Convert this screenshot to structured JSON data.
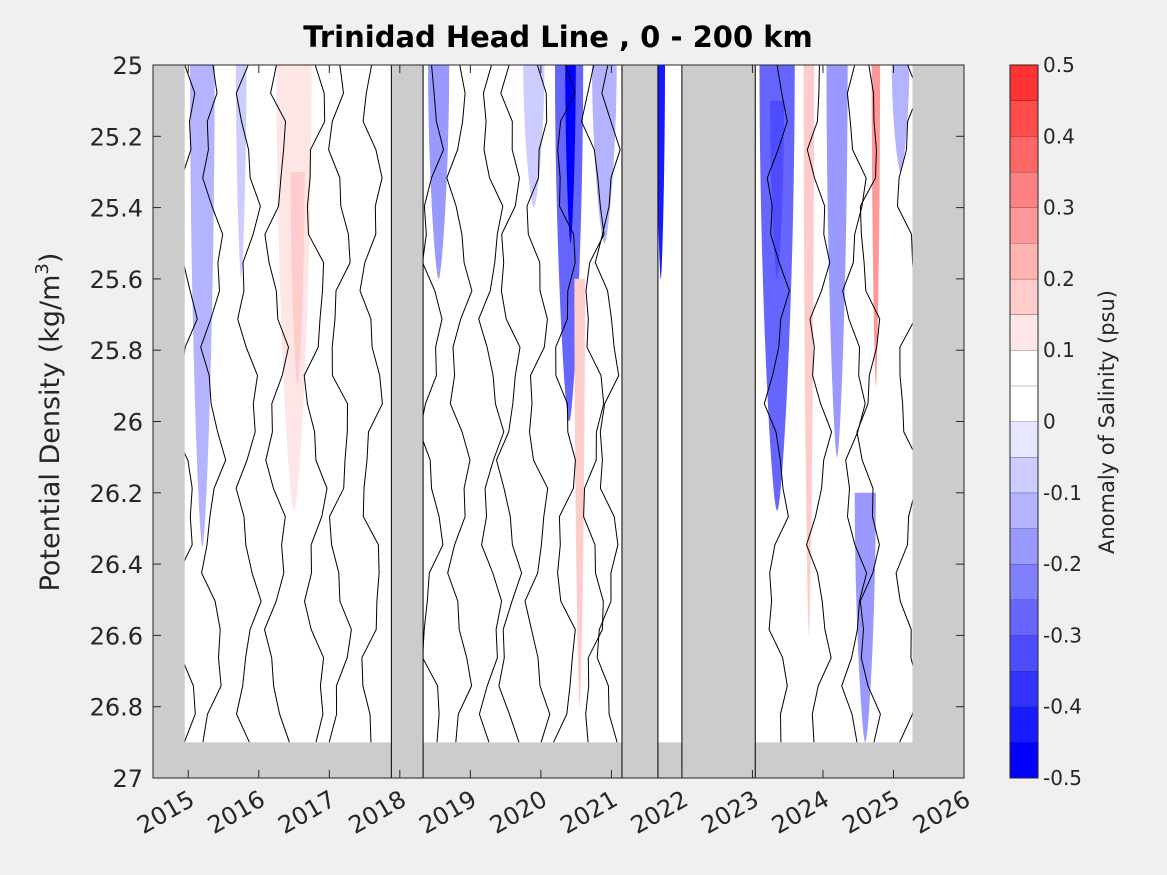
{
  "chart_data": {
    "type": "heatmap",
    "title": "Trinidad Head Line , 0 - 200 km",
    "xlabel": "",
    "ylabel": "Potential Density (kg/m",
    "ylabel_superscript": "3",
    "ylabel_close": ")",
    "xlim": [
      2014.5,
      2026.0
    ],
    "ylim": [
      25.0,
      27.0
    ],
    "y_reversed": true,
    "x_ticks": [
      2015,
      2016,
      2017,
      2018,
      2019,
      2020,
      2021,
      2022,
      2023,
      2024,
      2025,
      2026
    ],
    "x_tick_labels": [
      "2015",
      "2016",
      "2017",
      "2018",
      "2019",
      "2020",
      "2021",
      "2022",
      "2023",
      "2024",
      "2025",
      "2026"
    ],
    "y_ticks": [
      25.0,
      25.2,
      25.4,
      25.6,
      25.8,
      26.0,
      26.2,
      26.4,
      26.6,
      26.8,
      27.0
    ],
    "y_tick_labels": [
      "25",
      "25.2",
      "25.4",
      "25.6",
      "25.8",
      "26",
      "26.2",
      "26.4",
      "26.6",
      "26.8",
      "27"
    ],
    "colorbar": {
      "label": "Anomaly of Salinity (psu)",
      "range": [
        -0.5,
        0.5
      ],
      "levels": [
        -0.5,
        -0.45,
        -0.4,
        -0.35,
        -0.3,
        -0.25,
        -0.2,
        -0.15,
        -0.1,
        -0.05,
        0.0,
        0.05,
        0.1,
        0.15,
        0.2,
        0.25,
        0.3,
        0.35,
        0.4,
        0.45,
        0.5
      ],
      "ticks": [
        0.5,
        0.4,
        0.3,
        0.2,
        0.1,
        0,
        -0.1,
        -0.2,
        -0.3,
        -0.4,
        -0.5
      ],
      "tick_labels": [
        "0.5",
        "0.4",
        "0.3",
        "0.2",
        "0.1",
        "0",
        "-0.1",
        "-0.2",
        "-0.3",
        "-0.4",
        "-0.5"
      ],
      "colors": [
        "#0000ff",
        "#1a1aff",
        "#3333ff",
        "#4d4dff",
        "#6666ff",
        "#8080ff",
        "#9999ff",
        "#b3b3ff",
        "#ccccff",
        "#e6e6ff",
        "#ffffff",
        "#ffffff",
        "#ffe6e6",
        "#ffcccc",
        "#ffb3b3",
        "#ff9999",
        "#ff8080",
        "#ff6666",
        "#ff4d4d",
        "#ff3333",
        "#ff0000"
      ]
    },
    "no_data_color": "#cccccc",
    "no_data_periods": [
      [
        2014.5,
        2014.95
      ],
      [
        2017.88,
        2018.33
      ],
      [
        2021.15,
        2021.66
      ],
      [
        2022.0,
        2023.04
      ],
      [
        2025.27,
        2026.0
      ]
    ],
    "no_data_bottom_density": 26.9,
    "anomaly_features": [
      {
        "x": 2015.2,
        "width": 0.35,
        "y0": 25.0,
        "y1": 26.35,
        "value": -0.12
      },
      {
        "x": 2015.75,
        "width": 0.15,
        "y0": 25.0,
        "y1": 25.6,
        "value": -0.08
      },
      {
        "x": 2016.5,
        "width": 0.5,
        "y0": 25.0,
        "y1": 26.25,
        "value": 0.12
      },
      {
        "x": 2016.55,
        "width": 0.2,
        "y0": 25.3,
        "y1": 25.9,
        "value": 0.18
      },
      {
        "x": 2017.4,
        "width": 0.45,
        "y0": 25.0,
        "y1": 26.0,
        "value": 0.09
      },
      {
        "x": 2018.55,
        "width": 0.3,
        "y0": 25.0,
        "y1": 25.6,
        "value": -0.18
      },
      {
        "x": 2019.0,
        "width": 0.45,
        "y0": 25.0,
        "y1": 26.4,
        "value": 0.09
      },
      {
        "x": 2019.45,
        "width": 0.3,
        "y0": 25.2,
        "y1": 26.2,
        "value": 0.07
      },
      {
        "x": 2019.9,
        "width": 0.3,
        "y0": 25.0,
        "y1": 25.4,
        "value": -0.08
      },
      {
        "x": 2020.4,
        "width": 0.4,
        "y0": 25.0,
        "y1": 26.0,
        "value": -0.25
      },
      {
        "x": 2020.42,
        "width": 0.15,
        "y0": 25.0,
        "y1": 25.5,
        "value": -0.45
      },
      {
        "x": 2020.55,
        "width": 0.15,
        "y0": 25.6,
        "y1": 26.8,
        "value": 0.18
      },
      {
        "x": 2020.9,
        "width": 0.35,
        "y0": 25.0,
        "y1": 25.5,
        "value": -0.1
      },
      {
        "x": 2021.7,
        "width": 0.12,
        "y0": 25.0,
        "y1": 25.6,
        "value": -0.4
      },
      {
        "x": 2023.35,
        "width": 0.5,
        "y0": 25.0,
        "y1": 26.25,
        "value": -0.25
      },
      {
        "x": 2023.35,
        "width": 0.2,
        "y0": 25.1,
        "y1": 25.6,
        "value": -0.32
      },
      {
        "x": 2023.8,
        "width": 0.15,
        "y0": 25.0,
        "y1": 26.6,
        "value": 0.2
      },
      {
        "x": 2024.2,
        "width": 0.3,
        "y0": 25.0,
        "y1": 26.1,
        "value": -0.18
      },
      {
        "x": 2024.6,
        "width": 0.3,
        "y0": 26.2,
        "y1": 26.9,
        "value": -0.18
      },
      {
        "x": 2024.75,
        "width": 0.12,
        "y0": 25.0,
        "y1": 25.9,
        "value": 0.28
      },
      {
        "x": 2025.1,
        "width": 0.25,
        "y0": 25.0,
        "y1": 25.3,
        "value": -0.1
      }
    ]
  }
}
